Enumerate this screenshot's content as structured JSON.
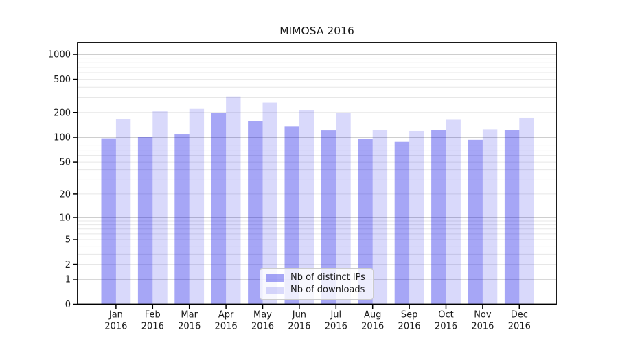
{
  "chart_data": {
    "type": "bar",
    "title": "MIMOSA 2016",
    "categories": [
      "Jan 2016",
      "Feb 2016",
      "Mar 2016",
      "Apr 2016",
      "May 2016",
      "Jun 2016",
      "Jul 2016",
      "Aug 2016",
      "Sep 2016",
      "Oct 2016",
      "Nov 2016",
      "Dec 2016"
    ],
    "series": [
      {
        "name": "Nb of distinct IPs",
        "color": "rgba(0,0,230,0.35)",
        "values": [
          97,
          101,
          108,
          197,
          158,
          135,
          121,
          96,
          88,
          122,
          93,
          122
        ]
      },
      {
        "name": "Nb of downloads",
        "color": "rgba(0,0,230,0.15)",
        "values": [
          166,
          206,
          220,
          310,
          262,
          214,
          197,
          123,
          119,
          163,
          125,
          171
        ]
      }
    ],
    "yscale": "log1p",
    "ylim": [
      0,
      1382
    ],
    "yticks": [
      0,
      1,
      2,
      5,
      10,
      20,
      50,
      100,
      200,
      500,
      1000
    ],
    "major_gridlines": [
      1,
      10,
      100,
      1000
    ],
    "minor_gridlines": [
      2,
      3,
      4,
      5,
      6,
      7,
      8,
      9,
      20,
      30,
      40,
      50,
      60,
      70,
      80,
      90,
      200,
      300,
      400,
      500,
      600,
      700,
      800,
      900
    ],
    "grid_color_major": "#b0b0b0",
    "grid_color_minor": "#e7e7e7",
    "axis_color": "#000000",
    "legend_position": "inside-bottom-center",
    "xlabel": "",
    "ylabel": ""
  }
}
